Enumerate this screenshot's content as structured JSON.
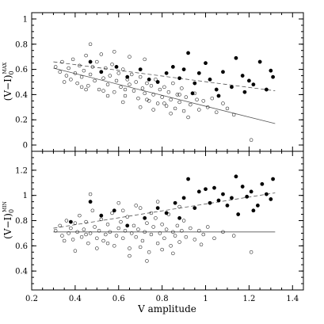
{
  "chart_data": [
    {
      "type": "scatter",
      "panel": "top",
      "title": "",
      "xlabel": "",
      "ylabel": "(V−I)₀^MAX",
      "ylabel_main": "(V−I)",
      "ylabel_sub": "0",
      "ylabel_sup": "MAX",
      "xlim": [
        0.2,
        1.45
      ],
      "ylim": [
        -0.05,
        1.05
      ],
      "xticks": [
        0.2,
        0.4,
        0.6,
        0.8,
        1.0,
        1.2,
        1.4
      ],
      "yticks": [
        0,
        0.2,
        0.4,
        0.6,
        0.8,
        1
      ],
      "ytick_labels": [
        "0",
        "0.2",
        "0.4",
        "0.6",
        "0.8",
        "1"
      ],
      "grid": false,
      "series": [
        {
          "marker": "open-circle",
          "points": [
            [
              0.31,
              0.62
            ],
            [
              0.33,
              0.58
            ],
            [
              0.34,
              0.66
            ],
            [
              0.36,
              0.55
            ],
            [
              0.37,
              0.61
            ],
            [
              0.38,
              0.52
            ],
            [
              0.39,
              0.68
            ],
            [
              0.4,
              0.57
            ],
            [
              0.41,
              0.49
            ],
            [
              0.42,
              0.63
            ],
            [
              0.43,
              0.54
            ],
            [
              0.44,
              0.59
            ],
            [
              0.45,
              0.71
            ],
            [
              0.46,
              0.47
            ],
            [
              0.47,
              0.56
            ],
            [
              0.48,
              0.62
            ],
            [
              0.49,
              0.51
            ],
            [
              0.5,
              0.66
            ],
            [
              0.51,
              0.44
            ],
            [
              0.52,
              0.58
            ],
            [
              0.53,
              0.53
            ],
            [
              0.54,
              0.61
            ],
            [
              0.55,
              0.48
            ],
            [
              0.56,
              0.55
            ],
            [
              0.57,
              0.64
            ],
            [
              0.58,
              0.42
            ],
            [
              0.59,
              0.51
            ],
            [
              0.6,
              0.57
            ],
            [
              0.61,
              0.46
            ],
            [
              0.62,
              0.6
            ],
            [
              0.63,
              0.39
            ],
            [
              0.64,
              0.52
            ],
            [
              0.65,
              0.48
            ],
            [
              0.66,
              0.56
            ],
            [
              0.67,
              0.43
            ],
            [
              0.68,
              0.5
            ],
            [
              0.69,
              0.37
            ],
            [
              0.7,
              0.54
            ],
            [
              0.71,
              0.45
            ],
            [
              0.72,
              0.41
            ],
            [
              0.73,
              0.49
            ],
            [
              0.74,
              0.35
            ],
            [
              0.75,
              0.47
            ],
            [
              0.76,
              0.4
            ],
            [
              0.77,
              0.52
            ],
            [
              0.78,
              0.33
            ],
            [
              0.79,
              0.44
            ],
            [
              0.8,
              0.38
            ],
            [
              0.81,
              0.46
            ],
            [
              0.82,
              0.31
            ],
            [
              0.83,
              0.42
            ],
            [
              0.84,
              0.36
            ],
            [
              0.85,
              0.49
            ],
            [
              0.86,
              0.29
            ],
            [
              0.87,
              0.4
            ],
            [
              0.88,
              0.34
            ],
            [
              0.89,
              0.45
            ],
            [
              0.9,
              0.27
            ],
            [
              0.91,
              0.38
            ],
            [
              0.93,
              0.32
            ],
            [
              0.95,
              0.41
            ],
            [
              0.97,
              0.28
            ],
            [
              0.99,
              0.35
            ],
            [
              1.01,
              0.3
            ],
            [
              1.03,
              0.37
            ],
            [
              1.05,
              0.26
            ],
            [
              1.08,
              0.33
            ],
            [
              1.1,
              0.29
            ],
            [
              1.13,
              0.24
            ],
            [
              1.21,
              0.04
            ],
            [
              0.47,
              0.8
            ],
            [
              0.52,
              0.72
            ],
            [
              0.58,
              0.74
            ],
            [
              0.65,
              0.7
            ],
            [
              0.72,
              0.68
            ],
            [
              0.35,
              0.5
            ],
            [
              0.45,
              0.44
            ],
            [
              0.55,
              0.39
            ],
            [
              0.62,
              0.34
            ],
            [
              0.7,
              0.3
            ],
            [
              0.76,
              0.28
            ],
            [
              0.84,
              0.25
            ],
            [
              0.92,
              0.22
            ],
            [
              0.43,
              0.46
            ],
            [
              0.53,
              0.43
            ],
            [
              0.63,
              0.44
            ],
            [
              0.73,
              0.36
            ],
            [
              0.81,
              0.33
            ],
            [
              0.88,
              0.4
            ],
            [
              0.96,
              0.36
            ]
          ]
        },
        {
          "marker": "filled-circle",
          "points": [
            [
              0.47,
              0.66
            ],
            [
              0.52,
              0.58
            ],
            [
              0.59,
              0.62
            ],
            [
              0.64,
              0.54
            ],
            [
              0.7,
              0.6
            ],
            [
              0.74,
              0.52
            ],
            [
              0.78,
              0.5
            ],
            [
              0.82,
              0.57
            ],
            [
              0.85,
              0.62
            ],
            [
              0.88,
              0.53
            ],
            [
              0.9,
              0.6
            ],
            [
              0.92,
              0.73
            ],
            [
              0.95,
              0.49
            ],
            [
              0.97,
              0.57
            ],
            [
              1.0,
              0.65
            ],
            [
              1.02,
              0.52
            ],
            [
              1.05,
              0.44
            ],
            [
              1.08,
              0.58
            ],
            [
              1.12,
              0.46
            ],
            [
              1.14,
              0.69
            ],
            [
              1.17,
              0.55
            ],
            [
              1.2,
              0.51
            ],
            [
              1.22,
              0.48
            ],
            [
              1.25,
              0.66
            ],
            [
              1.28,
              0.44
            ],
            [
              1.3,
              0.59
            ],
            [
              1.31,
              0.54
            ],
            [
              0.94,
              0.41
            ],
            [
              1.06,
              0.39
            ],
            [
              1.18,
              0.42
            ]
          ]
        }
      ],
      "lines": [
        {
          "style": "solid",
          "from": [
            0.3,
            0.61
          ],
          "to": [
            1.32,
            0.17
          ]
        },
        {
          "style": "dashed",
          "from": [
            0.3,
            0.66
          ],
          "to": [
            1.32,
            0.43
          ]
        }
      ]
    },
    {
      "type": "scatter",
      "panel": "bottom",
      "title": "",
      "xlabel": "V amplitude",
      "ylabel": "(V−I)₀^MIN",
      "ylabel_main": "(V−I)",
      "ylabel_sub": "0",
      "ylabel_sup": "MIN",
      "xlim": [
        0.2,
        1.45
      ],
      "ylim": [
        0.25,
        1.35
      ],
      "xticks": [
        0.2,
        0.4,
        0.6,
        0.8,
        1.0,
        1.2,
        1.4
      ],
      "xtick_labels": [
        "0.2",
        "0.4",
        "0.6",
        "0.8",
        "1",
        "1.2",
        "1.4"
      ],
      "yticks": [
        0.4,
        0.6,
        0.8,
        1.0,
        1.2
      ],
      "ytick_labels": [
        "0.4",
        "0.6",
        "0.8",
        "1",
        "1.2"
      ],
      "grid": false,
      "series": [
        {
          "marker": "open-circle",
          "points": [
            [
              0.31,
              0.72
            ],
            [
              0.33,
              0.76
            ],
            [
              0.34,
              0.68
            ],
            [
              0.36,
              0.8
            ],
            [
              0.37,
              0.7
            ],
            [
              0.38,
              0.74
            ],
            [
              0.39,
              0.65
            ],
            [
              0.4,
              0.78
            ],
            [
              0.41,
              0.71
            ],
            [
              0.42,
              0.84
            ],
            [
              0.43,
              0.67
            ],
            [
              0.44,
              0.73
            ],
            [
              0.45,
              0.79
            ],
            [
              0.46,
              0.62
            ],
            [
              0.47,
              0.7
            ],
            [
              0.48,
              0.88
            ],
            [
              0.49,
              0.75
            ],
            [
              0.5,
              0.66
            ],
            [
              0.51,
              0.72
            ],
            [
              0.52,
              0.81
            ],
            [
              0.53,
              0.64
            ],
            [
              0.54,
              0.69
            ],
            [
              0.55,
              0.77
            ],
            [
              0.56,
              0.71
            ],
            [
              0.57,
              0.86
            ],
            [
              0.58,
              0.6
            ],
            [
              0.59,
              0.68
            ],
            [
              0.6,
              0.74
            ],
            [
              0.61,
              0.79
            ],
            [
              0.62,
              0.66
            ],
            [
              0.63,
              0.72
            ],
            [
              0.64,
              0.83
            ],
            [
              0.65,
              0.58
            ],
            [
              0.66,
              0.7
            ],
            [
              0.67,
              0.76
            ],
            [
              0.68,
              0.67
            ],
            [
              0.69,
              0.73
            ],
            [
              0.7,
              0.9
            ],
            [
              0.71,
              0.64
            ],
            [
              0.72,
              0.71
            ],
            [
              0.73,
              0.78
            ],
            [
              0.74,
              0.55
            ],
            [
              0.75,
              0.69
            ],
            [
              0.76,
              0.75
            ],
            [
              0.77,
              0.82
            ],
            [
              0.78,
              0.62
            ],
            [
              0.79,
              0.7
            ],
            [
              0.8,
              0.77
            ],
            [
              0.81,
              0.66
            ],
            [
              0.82,
              0.73
            ],
            [
              0.83,
              0.85
            ],
            [
              0.84,
              0.6
            ],
            [
              0.85,
              0.71
            ],
            [
              0.86,
              0.68
            ],
            [
              0.87,
              0.76
            ],
            [
              0.88,
              0.63
            ],
            [
              0.89,
              0.72
            ],
            [
              0.9,
              0.8
            ],
            [
              0.91,
              0.67
            ],
            [
              0.93,
              0.74
            ],
            [
              0.95,
              0.65
            ],
            [
              0.97,
              0.72
            ],
            [
              0.99,
              0.69
            ],
            [
              1.01,
              0.75
            ],
            [
              1.04,
              0.66
            ],
            [
              1.08,
              0.71
            ],
            [
              1.13,
              0.68
            ],
            [
              0.47,
              1.01
            ],
            [
              0.73,
              0.48
            ],
            [
              0.98,
              0.61
            ],
            [
              1.21,
              0.55
            ],
            [
              0.4,
              0.56
            ],
            [
              0.5,
              0.58
            ],
            [
              0.55,
              0.62
            ],
            [
              0.65,
              0.52
            ],
            [
              0.7,
              0.59
            ],
            [
              0.8,
              0.57
            ],
            [
              0.85,
              0.54
            ],
            [
              0.6,
              0.94
            ],
            [
              0.68,
              0.92
            ],
            [
              0.78,
              0.95
            ],
            [
              0.88,
              0.91
            ],
            [
              0.35,
              0.64
            ],
            [
              0.45,
              0.69
            ],
            [
              0.62,
              0.88
            ],
            [
              0.75,
              0.86
            ]
          ]
        },
        {
          "marker": "filled-circle",
          "points": [
            [
              0.38,
              0.79
            ],
            [
              0.47,
              0.95
            ],
            [
              0.52,
              0.84
            ],
            [
              0.58,
              0.88
            ],
            [
              0.64,
              0.76
            ],
            [
              0.72,
              0.82
            ],
            [
              0.78,
              0.9
            ],
            [
              0.82,
              0.86
            ],
            [
              0.86,
              0.94
            ],
            [
              0.88,
              0.82
            ],
            [
              0.9,
              0.98
            ],
            [
              0.92,
              1.13
            ],
            [
              0.95,
              0.9
            ],
            [
              0.97,
              1.03
            ],
            [
              1.0,
              1.05
            ],
            [
              1.02,
              0.94
            ],
            [
              1.04,
              1.06
            ],
            [
              1.06,
              0.96
            ],
            [
              1.08,
              1.01
            ],
            [
              1.1,
              0.92
            ],
            [
              1.12,
              0.98
            ],
            [
              1.14,
              1.15
            ],
            [
              1.17,
              1.07
            ],
            [
              1.19,
              0.99
            ],
            [
              1.21,
              1.03
            ],
            [
              1.24,
              0.92
            ],
            [
              1.26,
              1.09
            ],
            [
              1.28,
              1.01
            ],
            [
              1.3,
              0.97
            ],
            [
              1.31,
              1.13
            ],
            [
              1.22,
              0.88
            ],
            [
              1.15,
              0.85
            ]
          ]
        }
      ],
      "lines": [
        {
          "style": "solid",
          "from": [
            0.3,
            0.71
          ],
          "to": [
            1.32,
            0.71
          ]
        },
        {
          "style": "dashed",
          "from": [
            0.3,
            0.74
          ],
          "to": [
            1.32,
            1.02
          ]
        }
      ]
    }
  ]
}
